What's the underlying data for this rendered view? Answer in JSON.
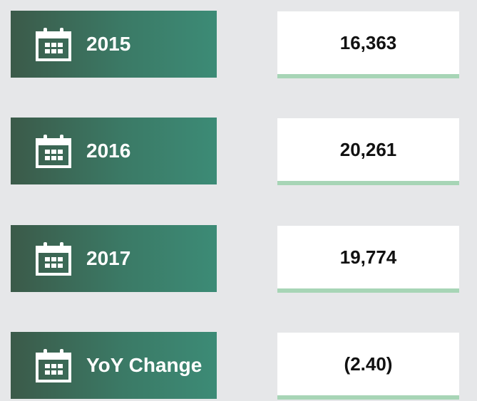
{
  "rows": [
    {
      "label": "2015",
      "value": "16,363"
    },
    {
      "label": "2016",
      "value": "20,261"
    },
    {
      "label": "2017",
      "value": "19,774"
    },
    {
      "label": "YoY Change",
      "value": "(2.40)"
    }
  ]
}
